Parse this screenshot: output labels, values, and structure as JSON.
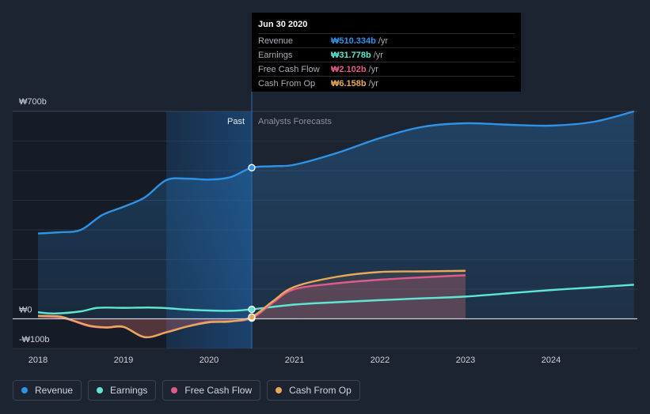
{
  "tooltip": {
    "date": "Jun 30 2020",
    "rows": [
      {
        "label": "Revenue",
        "value": "₩510.334b",
        "unit": "/yr",
        "color": "#2e93e6"
      },
      {
        "label": "Earnings",
        "value": "₩31.778b",
        "unit": "/yr",
        "color": "#5ee6d2"
      },
      {
        "label": "Free Cash Flow",
        "value": "₩2.102b",
        "unit": "/yr",
        "color": "#e05a8a"
      },
      {
        "label": "Cash From Op",
        "value": "₩6.158b",
        "unit": "/yr",
        "color": "#e8a95a"
      }
    ]
  },
  "regions": {
    "past": "Past",
    "forecast": "Analysts Forecasts"
  },
  "legend": [
    {
      "label": "Revenue",
      "color": "#2e93e6"
    },
    {
      "label": "Earnings",
      "color": "#5ee6d2"
    },
    {
      "label": "Free Cash Flow",
      "color": "#e05a8a"
    },
    {
      "label": "Cash From Op",
      "color": "#e8a95a"
    }
  ],
  "chart_data": {
    "type": "line",
    "title": "",
    "xlabel": "",
    "ylabel": "",
    "xlim": [
      2018,
      2025
    ],
    "ylim": [
      -100,
      700
    ],
    "y_ticks": [
      {
        "value": 700,
        "label": "₩700b"
      },
      {
        "value": 0,
        "label": "₩0"
      },
      {
        "value": -100,
        "label": "-₩100b"
      }
    ],
    "x_ticks": [
      {
        "value": 2018,
        "label": "2018"
      },
      {
        "value": 2019,
        "label": "2019"
      },
      {
        "value": 2020,
        "label": "2020"
      },
      {
        "value": 2021,
        "label": "2021"
      },
      {
        "value": 2022,
        "label": "2022"
      },
      {
        "value": 2023,
        "label": "2023"
      },
      {
        "value": 2024,
        "label": "2024"
      }
    ],
    "highlight_x": 2020.5,
    "highlight_band": [
      2019.5,
      2020.5
    ],
    "grid": true,
    "series": [
      {
        "name": "Revenue",
        "color": "#2e93e6",
        "fill": true,
        "points": [
          [
            2018,
            288
          ],
          [
            2018.25,
            292
          ],
          [
            2018.5,
            300
          ],
          [
            2018.75,
            350
          ],
          [
            2019,
            378
          ],
          [
            2019.25,
            410
          ],
          [
            2019.5,
            468
          ],
          [
            2019.75,
            473
          ],
          [
            2020,
            470
          ],
          [
            2020.25,
            478
          ],
          [
            2020.5,
            510
          ],
          [
            2020.75,
            515
          ],
          [
            2021,
            520
          ],
          [
            2021.5,
            560
          ],
          [
            2022,
            610
          ],
          [
            2022.5,
            648
          ],
          [
            2023,
            660
          ],
          [
            2023.5,
            655
          ],
          [
            2024,
            652
          ],
          [
            2024.5,
            665
          ],
          [
            2024.97,
            700
          ]
        ]
      },
      {
        "name": "Earnings",
        "color": "#5ee6d2",
        "fill": false,
        "points": [
          [
            2018,
            22
          ],
          [
            2018.2,
            18
          ],
          [
            2018.5,
            25
          ],
          [
            2018.7,
            37
          ],
          [
            2019,
            37
          ],
          [
            2019.3,
            38
          ],
          [
            2019.5,
            36
          ],
          [
            2019.75,
            31
          ],
          [
            2020,
            28
          ],
          [
            2020.25,
            27
          ],
          [
            2020.5,
            31.8
          ],
          [
            2021,
            48
          ],
          [
            2021.5,
            56
          ],
          [
            2022,
            63
          ],
          [
            2022.5,
            69
          ],
          [
            2023,
            75
          ],
          [
            2023.5,
            86
          ],
          [
            2024,
            97
          ],
          [
            2024.5,
            106
          ],
          [
            2024.97,
            115
          ]
        ]
      },
      {
        "name": "Free Cash Flow",
        "color": "#e05a8a",
        "fill": true,
        "points": [
          [
            2018,
            10
          ],
          [
            2018.25,
            5
          ],
          [
            2018.4,
            -6
          ],
          [
            2018.6,
            -25
          ],
          [
            2018.8,
            -30
          ],
          [
            2019,
            -28
          ],
          [
            2019.25,
            -62
          ],
          [
            2019.5,
            -45
          ],
          [
            2019.75,
            -25
          ],
          [
            2020,
            -10
          ],
          [
            2020.25,
            -8
          ],
          [
            2020.5,
            2.1
          ],
          [
            2020.75,
            55
          ],
          [
            2021,
            100
          ],
          [
            2021.5,
            120
          ],
          [
            2022,
            132
          ],
          [
            2022.5,
            140
          ],
          [
            2023,
            147
          ]
        ]
      },
      {
        "name": "Cash From Op",
        "color": "#e8a95a",
        "fill": true,
        "points": [
          [
            2018,
            10
          ],
          [
            2018.25,
            8
          ],
          [
            2018.4,
            -5
          ],
          [
            2018.6,
            -23
          ],
          [
            2018.8,
            -29
          ],
          [
            2019,
            -27
          ],
          [
            2019.25,
            -62
          ],
          [
            2019.5,
            -46
          ],
          [
            2019.75,
            -26
          ],
          [
            2020,
            -12
          ],
          [
            2020.25,
            -9
          ],
          [
            2020.5,
            6.2
          ],
          [
            2020.75,
            60
          ],
          [
            2021,
            108
          ],
          [
            2021.5,
            142
          ],
          [
            2022,
            158
          ],
          [
            2022.5,
            160
          ],
          [
            2023,
            162
          ]
        ]
      }
    ]
  }
}
